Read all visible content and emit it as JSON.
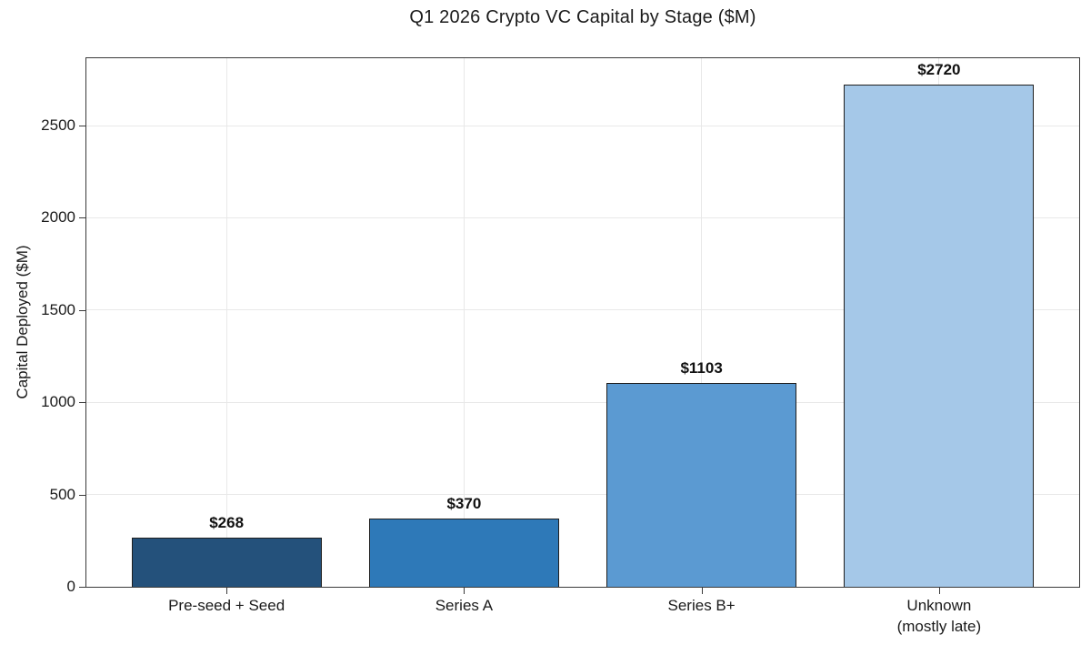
{
  "chart_data": {
    "type": "bar",
    "title": "Q1 2026 Crypto VC Capital by Stage ($M)",
    "xlabel": "",
    "ylabel": "Capital Deployed ($M)",
    "categories": [
      "Pre-seed + Seed",
      "Series A",
      "Series B+",
      "Unknown\n(mostly late)"
    ],
    "values": [
      268,
      370,
      1103,
      2720
    ],
    "bar_labels": [
      "$268",
      "$370",
      "$1103",
      "$2720"
    ],
    "bar_colors": [
      "#24517b",
      "#2e79b8",
      "#5b9ad2",
      "#a5c8e8"
    ],
    "bar_edge_color": "#1f1f1f",
    "yticks": [
      0,
      500,
      1000,
      1500,
      2000,
      2500
    ],
    "ylim": [
      0,
      2865
    ],
    "bar_width_fraction": 0.8,
    "grid": true,
    "grid_color": "#e8e8e8",
    "background": "#ffffff",
    "legend": "none"
  }
}
